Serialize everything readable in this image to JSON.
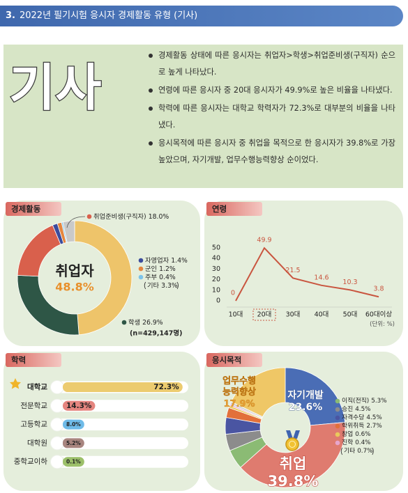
{
  "header": {
    "number": "3.",
    "title": "2022년 필기시험 응시자 경제활동 유형 (기사)"
  },
  "summary": {
    "heading": "기사",
    "bullets": [
      "경제활동 상태에 따른 응시자는 취업자>학생>취업준비생(구직자) 순으로 높게 나타났다.",
      "연령에 따른 응시자 중 20대 응시자가 49.9%로 높은 비율을 나타냈다.",
      "학력에 따른 응시자는 대학교 학력자가 72.3%로 대부분의 비율을 나타냈다.",
      "응시목적에 따른 응시자 중 취업을 목적으로 한 응시자가 39.8%로 가장 높았으며, 자기개발, 업무수행능력향상 순이었다."
    ]
  },
  "chart_data": [
    {
      "type": "donut",
      "title": "경제활동",
      "categories": [
        "취업자",
        "학생",
        "취업준비생(구직자)",
        "자영업자",
        "군인",
        "주부",
        "기타"
      ],
      "values": [
        48.8,
        26.9,
        18.0,
        1.4,
        1.2,
        0.4,
        3.3
      ],
      "value_labels": [
        "48.8%",
        "26.9%",
        "18.0%",
        "1.4%",
        "1.2%",
        "0.4%",
        "3.3%"
      ],
      "colors": [
        "#eec46a",
        "#2e5646",
        "#d9604c",
        "#3c4c9c",
        "#e5863f",
        "#7cc3ea",
        "#c9c9c9"
      ],
      "note": "(n=429,147명)"
    },
    {
      "type": "line",
      "title": "연령",
      "categories": [
        "10대",
        "20대",
        "30대",
        "40대",
        "50대",
        "60대이상"
      ],
      "values": [
        0,
        49.9,
        21.5,
        14.6,
        10.3,
        3.8
      ],
      "color": "#c9553f",
      "ylim": [
        0,
        50
      ],
      "yticks": [
        0,
        10,
        20,
        30,
        40,
        50
      ],
      "unit": "(단위: %)"
    },
    {
      "type": "bar",
      "title": "학력",
      "categories": [
        "대학교",
        "전문학교",
        "고등학교",
        "대학원",
        "중학교이하"
      ],
      "values": [
        72.3,
        14.3,
        8.0,
        5.2,
        0.1
      ],
      "value_labels": [
        "72.3%",
        "14.3%",
        "8.0%",
        "5.2%",
        "0.1%"
      ],
      "colors": [
        "#eccb6f",
        "#e5857f",
        "#6fbbe8",
        "#a8857f",
        "#9cc06a"
      ],
      "xlim": [
        0,
        80
      ]
    },
    {
      "type": "donut",
      "title": "응시목적",
      "categories": [
        "자기개발",
        "취업",
        "이직(전직)",
        "승진",
        "자격수당",
        "학위취득",
        "창업",
        "진학",
        "기타",
        "업무수행능력향상"
      ],
      "values": [
        23.6,
        39.8,
        5.3,
        4.5,
        4.5,
        2.7,
        0.6,
        0.4,
        0.7,
        17.9
      ],
      "value_labels": [
        "23.6%",
        "39.8%",
        "5.3%",
        "4.5%",
        "4.5%",
        "2.7%",
        "0.6%",
        "0.4%",
        "0.7%",
        "17.9%"
      ],
      "colors": [
        "#4a6db5",
        "#df7b6f",
        "#8bbb74",
        "#8c8c8c",
        "#4a55a2",
        "#e2703a",
        "#eac95c",
        "#e7a6cc",
        "#d5d5d5",
        "#efc766"
      ]
    }
  ]
}
